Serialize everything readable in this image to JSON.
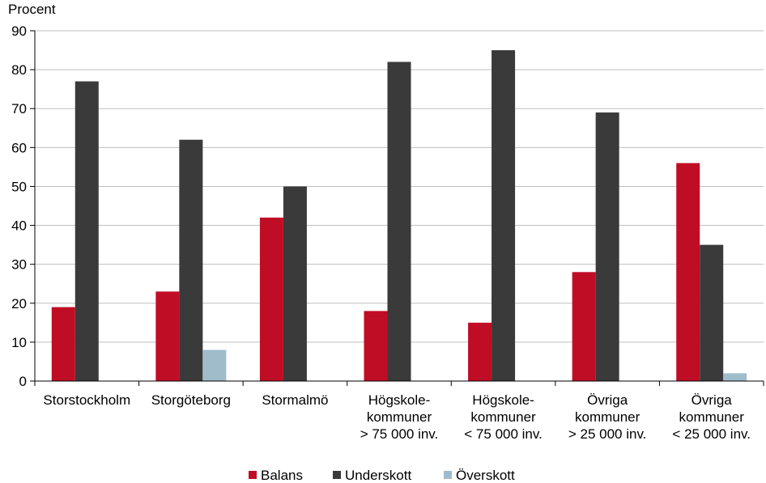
{
  "chart_data": {
    "type": "bar",
    "title": "",
    "ylabel": "Procent",
    "xlabel": "",
    "ylim": [
      0,
      90
    ],
    "yticks": [
      0,
      10,
      20,
      30,
      40,
      50,
      60,
      70,
      80,
      90
    ],
    "grid": true,
    "legend_position": "bottom",
    "categories": [
      [
        "Storstockholm"
      ],
      [
        "Storgöteborg"
      ],
      [
        "Stormalmö"
      ],
      [
        "Högskole-",
        "kommuner",
        "> 75 000 inv."
      ],
      [
        "Högskole-",
        "kommuner",
        "< 75 000 inv."
      ],
      [
        "Övriga",
        "kommuner",
        "> 25 000 inv."
      ],
      [
        "Övriga",
        "kommuner",
        "< 25 000 inv."
      ]
    ],
    "series": [
      {
        "name": "Balans",
        "color": "#c00d26",
        "values": [
          19,
          23,
          42,
          18,
          15,
          28,
          56
        ]
      },
      {
        "name": "Underskott",
        "color": "#3a3a3a",
        "values": [
          77,
          62,
          50,
          82,
          85,
          69,
          35
        ]
      },
      {
        "name": "Överskott",
        "color": "#a0bccb",
        "values": [
          0,
          8,
          0,
          0,
          0,
          0,
          2
        ]
      }
    ]
  }
}
